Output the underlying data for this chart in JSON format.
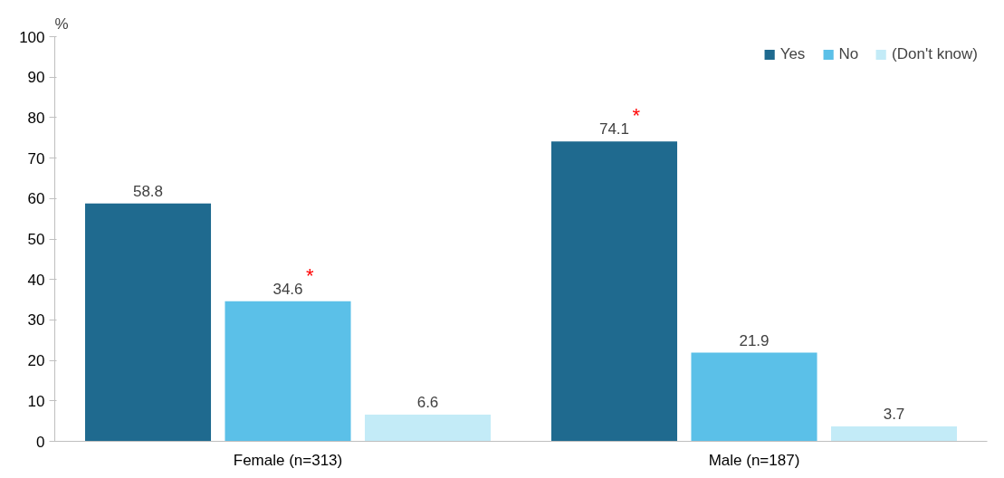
{
  "chart_data": {
    "type": "bar",
    "ylabel": "%",
    "categories": [
      "Female (n=313)",
      "Male (n=187)"
    ],
    "series": [
      {
        "name": "Yes",
        "color": "#1f6a8f",
        "values": [
          58.8,
          74.1
        ]
      },
      {
        "name": "No",
        "color": "#5bc0e8",
        "values": [
          34.6,
          21.9
        ]
      },
      {
        "name": "(Don't know)",
        "color": "#c3ebf7",
        "values": [
          6.6,
          3.7
        ]
      }
    ],
    "ylim": [
      0,
      100
    ],
    "yticks": [
      0,
      10,
      20,
      30,
      40,
      50,
      60,
      70,
      80,
      90,
      100
    ],
    "grid": false,
    "legend": "top right",
    "data_labels": true,
    "annotations": [
      {
        "text": "*",
        "x": "Female (n=313)",
        "y": 34.6
      },
      "*"
    ]
  }
}
